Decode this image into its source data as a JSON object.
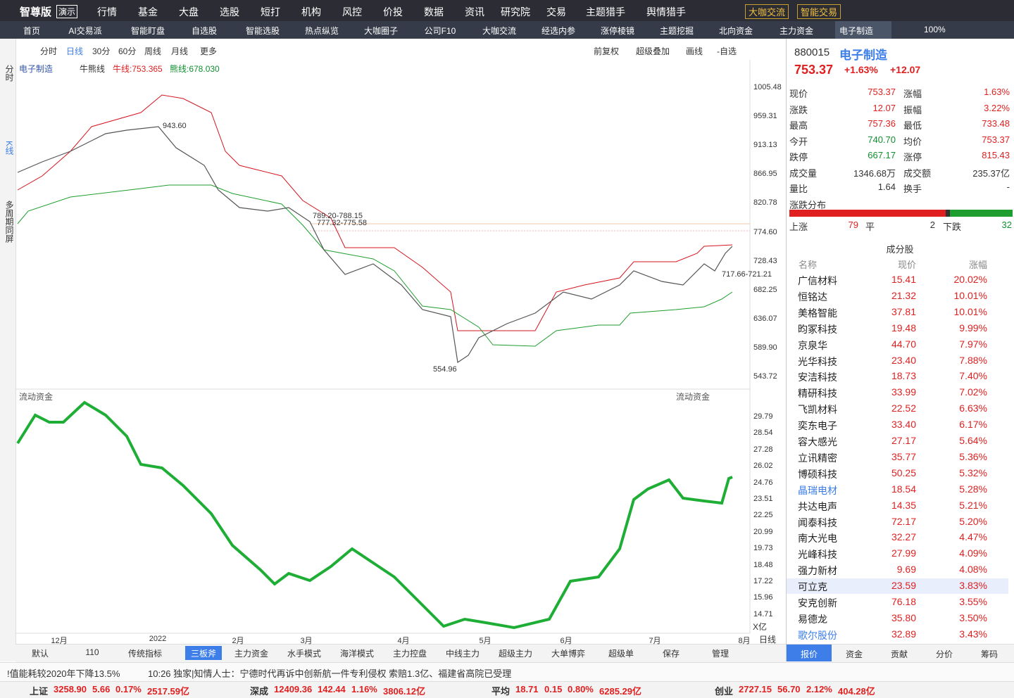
{
  "topbar": {
    "logo": "智尊版",
    "badge": "演示",
    "menu": [
      "行情",
      "基金",
      "大盘",
      "选股",
      "短打",
      "机构",
      "风控",
      "价投",
      "数据",
      "资讯",
      "研究院",
      "交易",
      "主题猎手",
      "舆情猎手"
    ],
    "buttons": [
      "大咖交流",
      "智能交易"
    ]
  },
  "tabs": {
    "items": [
      "首页",
      "AI交易派",
      "智能盯盘",
      "自选股",
      "智能选股",
      "热点纵览",
      "大咖圈子",
      "公司F10",
      "大咖交流",
      "经选内参",
      "涨停棱镜",
      "主题挖掘",
      "北向资金",
      "主力资金",
      "电子制造"
    ],
    "zoom": "100%"
  },
  "side_tabs": [
    "分时",
    "K线",
    "多周期同屏"
  ],
  "toolbar": {
    "periods": [
      "分时",
      "日线",
      "30分",
      "60分",
      "周线",
      "月线",
      "更多"
    ],
    "right": [
      "前复权",
      "超级叠加",
      "画线",
      "-自选"
    ]
  },
  "main_chart": {
    "legend": [
      "电子制造",
      "牛熊线",
      "牛线:753.365",
      "熊线:678.030"
    ],
    "yticks": [
      "1005.48",
      "959.31",
      "913.13",
      "866.95",
      "820.78",
      "774.60",
      "728.43",
      "682.25",
      "636.07",
      "589.90",
      "543.72"
    ],
    "annotations": [
      "943.60",
      "789.20-788.15",
      "777.32-775.58",
      "554.96",
      "717.66-721.21"
    ]
  },
  "sub_chart": {
    "title": "流动资金",
    "yticks": [
      "29.79",
      "28.54",
      "27.28",
      "26.02",
      "24.76",
      "23.51",
      "22.25",
      "20.99",
      "19.73",
      "18.48",
      "17.22",
      "15.96",
      "14.71"
    ],
    "unit": "X亿"
  },
  "xaxis": {
    "labels": [
      "12月",
      "2022",
      "2月",
      "3月",
      "4月",
      "5月",
      "6月",
      "7月",
      "8月"
    ],
    "period": "日线"
  },
  "bottom_tabs": [
    "默认",
    "110",
    "传统指标",
    "三板斧",
    "主力资金",
    "水手模式",
    "海洋模式",
    "主力控盘",
    "中线主力",
    "超级主力",
    "大单博弈",
    "超级单",
    "保存",
    "管理"
  ],
  "news": [
    "!值能耗较2020年下降13.5%",
    "10:26 独家|知情人士：宁德时代再诉中创新航一件专利侵权 索赔1.3亿、福建省高院已受理"
  ],
  "status": [
    [
      "上证",
      "3258.90",
      "5.66",
      "0.17%",
      "2517.59亿"
    ],
    [
      "深成",
      "12409.36",
      "142.44",
      "1.16%",
      "3806.12亿"
    ],
    [
      "平均",
      "18.71",
      "0.15",
      "0.80%",
      "6285.29亿"
    ],
    [
      "创业",
      "2727.15",
      "56.70",
      "2.12%",
      "404.28亿"
    ]
  ],
  "quote": {
    "code": "880015",
    "name": "电子制造",
    "price": "753.37",
    "pct": "+1.63%",
    "change": "+12.07",
    "rows": [
      [
        "现价",
        "753.37",
        "涨幅",
        "1.63%"
      ],
      [
        "涨跌",
        "12.07",
        "振幅",
        "3.22%"
      ],
      [
        "最高",
        "757.36",
        "最低",
        "733.48"
      ],
      [
        "今开",
        "740.70",
        "均价",
        "753.37"
      ],
      [
        "跌停",
        "667.17",
        "涨停",
        "815.43"
      ],
      [
        "成交量",
        "1346.68万",
        "成交额",
        "235.37亿"
      ],
      [
        "量比",
        "1.64",
        "换手",
        "-"
      ]
    ],
    "distribution": {
      "title": "涨跌分布",
      "labels": [
        "上涨",
        "平",
        "下跌"
      ],
      "counts": [
        79,
        2,
        32
      ]
    }
  },
  "constituents": {
    "title": "成分股",
    "header": [
      "名称",
      "现价",
      "涨幅"
    ],
    "rows": [
      [
        "广信材料",
        "15.41",
        "20.02%"
      ],
      [
        "恒铭达",
        "21.32",
        "10.01%"
      ],
      [
        "美格智能",
        "37.81",
        "10.01%"
      ],
      [
        "昀冢科技",
        "19.48",
        "9.99%"
      ],
      [
        "京泉华",
        "44.70",
        "7.97%"
      ],
      [
        "光华科技",
        "23.40",
        "7.88%"
      ],
      [
        "安洁科技",
        "18.73",
        "7.40%"
      ],
      [
        "精研科技",
        "33.99",
        "7.02%"
      ],
      [
        "飞凯材料",
        "22.52",
        "6.63%"
      ],
      [
        "奕东电子",
        "33.40",
        "6.17%"
      ],
      [
        "容大感光",
        "27.17",
        "5.64%"
      ],
      [
        "立讯精密",
        "35.77",
        "5.36%"
      ],
      [
        "博硕科技",
        "50.25",
        "5.32%"
      ],
      [
        "晶瑞电材",
        "18.54",
        "5.28%"
      ],
      [
        "共达电声",
        "14.35",
        "5.21%"
      ],
      [
        "闻泰科技",
        "72.17",
        "5.20%"
      ],
      [
        "南大光电",
        "32.27",
        "4.47%"
      ],
      [
        "光峰科技",
        "27.99",
        "4.09%"
      ],
      [
        "强力新材",
        "9.69",
        "4.08%"
      ],
      [
        "可立克",
        "23.59",
        "3.83%"
      ],
      [
        "安克创新",
        "76.18",
        "3.55%"
      ],
      [
        "易德龙",
        "35.80",
        "3.50%"
      ],
      [
        "歌尔股份",
        "32.89",
        "3.43%"
      ]
    ]
  },
  "right_tabs": [
    "报价",
    "资金",
    "贡献",
    "分价",
    "筹码"
  ]
}
